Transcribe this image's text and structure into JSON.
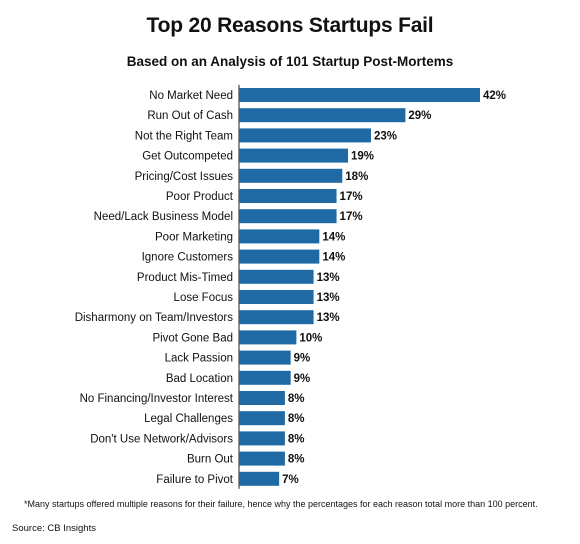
{
  "chart_data": {
    "type": "bar",
    "orientation": "horizontal",
    "title": "Top 20 Reasons Startups Fail",
    "subtitle": "Based on an Analysis of 101 Startup Post-Mortems",
    "categories": [
      "No Market Need",
      "Run Out of Cash",
      "Not the Right Team",
      "Get Outcompeted",
      "Pricing/Cost Issues",
      "Poor Product",
      "Need/Lack Business Model",
      "Poor Marketing",
      "Ignore Customers",
      "Product Mis-Timed",
      "Lose Focus",
      "Disharmony on Team/Investors",
      "Pivot Gone Bad",
      "Lack Passion",
      "Bad Location",
      "No Financing/Investor Interest",
      "Legal Challenges",
      "Don't Use Network/Advisors",
      "Burn Out",
      "Failure to Pivot"
    ],
    "values": [
      42,
      29,
      23,
      19,
      18,
      17,
      17,
      14,
      14,
      13,
      13,
      13,
      10,
      9,
      9,
      8,
      8,
      8,
      8,
      7
    ],
    "value_labels": [
      "42%",
      "29%",
      "23%",
      "19%",
      "18%",
      "17%",
      "17%",
      "14%",
      "14%",
      "13%",
      "13%",
      "13%",
      "10%",
      "9%",
      "9%",
      "8%",
      "8%",
      "8%",
      "8%",
      "7%"
    ],
    "xlim": [
      0,
      42
    ],
    "bar_color": "#1f6aa5",
    "grid": false,
    "legend": "none"
  },
  "footnote": "*Many startups offered multiple reasons for their failure, hence why the percentages for each reason total more than 100 percent.",
  "source": "Source: CB Insights"
}
